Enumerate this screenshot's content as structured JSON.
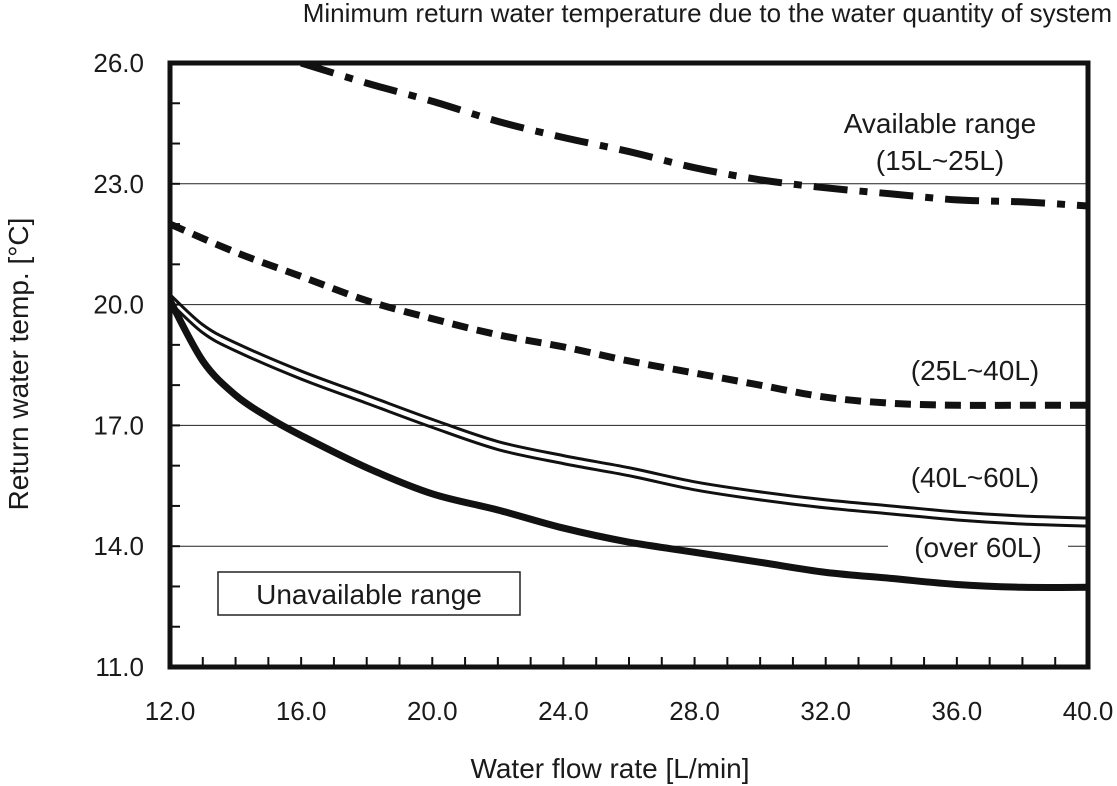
{
  "chart_data": {
    "type": "line",
    "title": "Minimum return water temperature due to the water quantity of system",
    "xlabel": "Water flow rate [L/min]",
    "ylabel": "Return water temp. [°C]",
    "xlim": [
      12,
      40
    ],
    "ylim": [
      11,
      26
    ],
    "xticks": [
      "12.0",
      "16.0",
      "20.0",
      "24.0",
      "28.0",
      "32.0",
      "36.0",
      "40.0"
    ],
    "yticks": [
      "11.0",
      "14.0",
      "17.0",
      "20.0",
      "23.0",
      "26.0"
    ],
    "grid": "horizontal",
    "series": [
      {
        "name": "Available range (15L~25L)",
        "style": "dash-dot",
        "x": [
          16,
          18,
          20,
          22,
          24,
          26,
          28,
          30,
          32,
          34,
          36,
          38,
          40
        ],
        "y": [
          26.0,
          25.5,
          25.05,
          24.55,
          24.15,
          23.8,
          23.4,
          23.1,
          22.9,
          22.75,
          22.6,
          22.55,
          22.45
        ]
      },
      {
        "name": "(25L~40L)",
        "style": "dashed",
        "x": [
          12,
          14,
          16,
          18,
          20,
          22,
          24,
          26,
          28,
          30,
          32,
          34,
          36,
          38,
          40
        ],
        "y": [
          22.0,
          21.3,
          20.7,
          20.1,
          19.65,
          19.25,
          18.95,
          18.6,
          18.3,
          18.0,
          17.7,
          17.55,
          17.5,
          17.5,
          17.5
        ]
      },
      {
        "name": "(40L~60L)",
        "style": "double",
        "x": [
          12,
          13,
          14,
          16,
          18,
          20,
          22,
          24,
          26,
          28,
          30,
          32,
          34,
          36,
          38,
          40
        ],
        "y": [
          20.15,
          19.4,
          18.95,
          18.25,
          17.65,
          17.05,
          16.5,
          16.15,
          15.85,
          15.5,
          15.25,
          15.05,
          14.9,
          14.75,
          14.65,
          14.6
        ]
      },
      {
        "name": "(over 60L)",
        "style": "solid-bold",
        "x": [
          12,
          13,
          14,
          15,
          16,
          18,
          20,
          22,
          24,
          26,
          28,
          30,
          32,
          34,
          36,
          38,
          40
        ],
        "y": [
          20.1,
          18.6,
          17.75,
          17.2,
          16.75,
          15.95,
          15.3,
          14.9,
          14.45,
          14.1,
          13.85,
          13.6,
          13.35,
          13.2,
          13.05,
          12.98,
          12.98
        ]
      }
    ],
    "labels": {
      "available_range_line1": "Available range",
      "available_range_line2": "(15L~25L)",
      "range_25_40": "(25L~40L)",
      "range_40_60": "(40L~60L)",
      "range_over_60": "(over 60L)",
      "unavailable_range": "Unavailable range"
    }
  }
}
